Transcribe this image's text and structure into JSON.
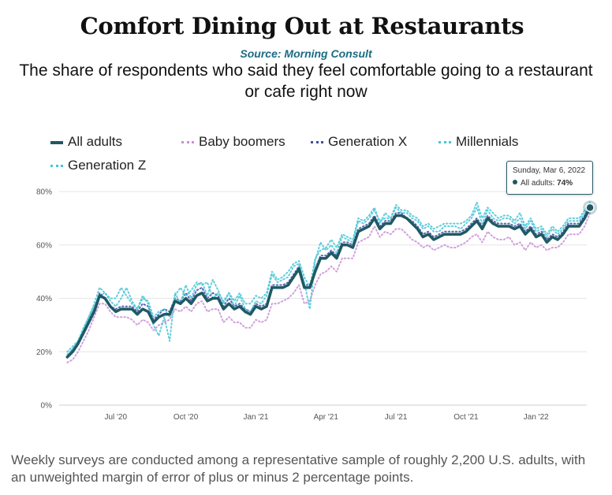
{
  "header": {
    "title": "Comfort Dining Out at Restaurants",
    "source": "Source: Morning Consult",
    "subtitle": "The share of respondents who said they feel comfortable going to a restaurant or cafe right now"
  },
  "footer": {
    "note": "Weekly surveys are conducted among a representative sample of roughly 2,200 U.S. adults, with an unweighted margin of error of plus or minus 2 percentage points."
  },
  "tooltip": {
    "date": "Sunday, Mar 6, 2022",
    "label": "All adults:",
    "value": "74%"
  },
  "chart_data": {
    "type": "line",
    "title": "Comfort Dining Out at Restaurants",
    "xlabel": "",
    "ylabel": "",
    "y_unit": "%",
    "ylim": [
      0,
      80
    ],
    "y_ticks": [
      0,
      20,
      40,
      60,
      80
    ],
    "y_tick_labels": [
      "0%",
      "20%",
      "40%",
      "60%",
      "80%"
    ],
    "x_ticks": [
      {
        "week": 9,
        "label": "Jul '20"
      },
      {
        "week": 22,
        "label": "Oct '20"
      },
      {
        "week": 35,
        "label": "Jan '21"
      },
      {
        "week": 48,
        "label": "Apr '21"
      },
      {
        "week": 61,
        "label": "Jul '21"
      },
      {
        "week": 74,
        "label": "Oct '21"
      },
      {
        "week": 87,
        "label": "Jan '22"
      }
    ],
    "x_domain": [
      -1.5,
      96.4
    ],
    "grid": true,
    "legend_position": "top-left",
    "series": [
      {
        "name": "All adults",
        "color": "#1f5963",
        "style": "solid",
        "values": [
          18,
          20,
          23,
          27,
          31,
          35,
          41,
          40,
          37,
          35,
          36,
          36,
          36,
          34,
          36,
          35,
          31,
          33,
          34,
          34,
          39,
          38,
          40,
          38,
          41,
          42,
          39,
          40,
          40,
          36,
          38,
          36,
          37,
          35,
          34,
          37,
          36,
          37,
          44,
          44,
          44,
          45,
          48,
          51,
          44,
          44,
          50,
          55,
          55,
          57,
          55,
          60,
          60,
          59,
          65,
          66,
          67,
          70,
          66,
          68,
          68,
          71,
          71,
          70,
          68,
          66,
          63,
          64,
          62,
          63,
          64,
          64,
          64,
          64,
          65,
          67,
          69,
          66,
          70,
          68,
          67,
          67,
          67,
          66,
          67,
          64,
          66,
          63,
          64,
          61,
          63,
          62,
          64,
          67,
          67,
          67,
          70,
          74
        ]
      },
      {
        "name": "Baby boomers",
        "color": "#c98fd8",
        "style": "dotted",
        "values": [
          16,
          17,
          20,
          24,
          28,
          33,
          38,
          38,
          35,
          33,
          33,
          33,
          32,
          30,
          32,
          31,
          28,
          30,
          31,
          32,
          36,
          35,
          37,
          35,
          38,
          39,
          35,
          36,
          36,
          31,
          33,
          31,
          31,
          29,
          29,
          32,
          31,
          32,
          38,
          38,
          39,
          40,
          42,
          45,
          38,
          39,
          45,
          49,
          50,
          52,
          50,
          55,
          55,
          55,
          61,
          62,
          63,
          67,
          63,
          65,
          64,
          66,
          66,
          64,
          62,
          61,
          59,
          60,
          58,
          59,
          60,
          59,
          59,
          60,
          61,
          63,
          64,
          61,
          65,
          63,
          62,
          62,
          63,
          60,
          61,
          58,
          61,
          59,
          60,
          58,
          59,
          59,
          61,
          64,
          64,
          64,
          67,
          72
        ]
      },
      {
        "name": "Generation X",
        "color": "#3d4ea3",
        "style": "dotted",
        "values": [
          18,
          21,
          23,
          28,
          32,
          36,
          42,
          40,
          37,
          36,
          37,
          37,
          37,
          35,
          38,
          37,
          32,
          34,
          36,
          35,
          40,
          39,
          42,
          39,
          43,
          44,
          40,
          42,
          41,
          37,
          40,
          37,
          38,
          36,
          35,
          38,
          37,
          38,
          45,
          45,
          45,
          46,
          49,
          52,
          45,
          45,
          51,
          56,
          56,
          58,
          56,
          61,
          61,
          60,
          66,
          67,
          68,
          71,
          67,
          69,
          69,
          72,
          72,
          70,
          69,
          67,
          64,
          65,
          63,
          64,
          65,
          65,
          65,
          65,
          66,
          68,
          70,
          67,
          71,
          69,
          68,
          68,
          68,
          67,
          68,
          65,
          67,
          64,
          65,
          62,
          64,
          63,
          65,
          68,
          68,
          68,
          71,
          75
        ]
      },
      {
        "name": "Millennials",
        "color": "#45c5d6",
        "style": "dotted",
        "values": [
          20,
          22,
          24,
          29,
          33,
          38,
          44,
          42,
          39,
          37,
          40,
          44,
          39,
          36,
          41,
          38,
          30,
          26,
          33,
          24,
          42,
          38,
          45,
          40,
          45,
          46,
          41,
          47,
          43,
          38,
          42,
          37,
          41,
          36,
          35,
          39,
          38,
          41,
          49,
          46,
          47,
          48,
          52,
          53,
          46,
          36,
          54,
          61,
          58,
          60,
          57,
          63,
          62,
          61,
          69,
          68,
          70,
          73,
          69,
          70,
          70,
          74,
          72,
          72,
          70,
          69,
          66,
          67,
          65,
          65,
          67,
          67,
          67,
          66,
          68,
          70,
          74,
          68,
          73,
          70,
          69,
          70,
          70,
          68,
          70,
          66,
          69,
          65,
          66,
          63,
          66,
          64,
          66,
          69,
          69,
          69,
          72,
          75
        ]
      },
      {
        "name": "Generation Z",
        "color": "#45c5d6",
        "style": "dotted",
        "values": [
          19,
          21,
          24,
          28,
          33,
          37,
          41,
          42,
          40,
          40,
          44,
          41,
          38,
          36,
          40,
          39,
          33,
          35,
          36,
          33,
          41,
          44,
          41,
          43,
          46,
          45,
          46,
          40,
          42,
          39,
          42,
          39,
          42,
          38,
          38,
          41,
          40,
          42,
          50,
          47,
          48,
          50,
          53,
          54,
          48,
          44,
          55,
          58,
          59,
          62,
          59,
          64,
          63,
          62,
          70,
          69,
          71,
          74,
          68,
          72,
          70,
          75,
          73,
          73,
          71,
          70,
          67,
          68,
          66,
          67,
          68,
          68,
          68,
          68,
          69,
          71,
          76,
          70,
          74,
          72,
          70,
          71,
          71,
          69,
          72,
          67,
          70,
          66,
          67,
          64,
          67,
          65,
          67,
          70,
          70,
          70,
          73,
          76
        ]
      }
    ],
    "highlight": {
      "series": "All adults",
      "week": 97,
      "value": 74
    }
  }
}
